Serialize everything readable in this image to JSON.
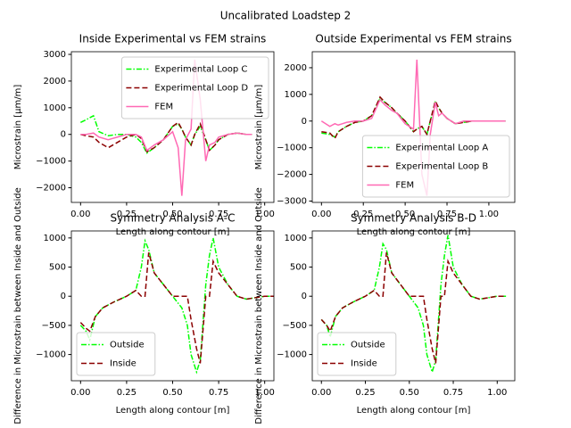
{
  "title": "Uncalibrated Loadstep 2",
  "chart_data": [
    {
      "type": "line",
      "title": "Inside Experimental vs FEM strains",
      "xlabel": "Length along contour [m]",
      "ylabel": "Microstrain [µm/m]",
      "x": [
        0,
        0.03,
        0.07,
        0.1,
        0.15,
        0.2,
        0.25,
        0.3,
        0.33,
        0.36,
        0.4,
        0.45,
        0.5,
        0.53,
        0.55,
        0.57,
        0.6,
        0.62,
        0.65,
        0.68,
        0.7,
        0.73,
        0.75,
        0.8,
        0.85,
        0.9,
        0.93
      ],
      "series": [
        {
          "name": "Experimental Loop C",
          "color": "#00ff00",
          "linestyle": "dashdot",
          "values": [
            450,
            550,
            700,
            100,
            -50,
            0,
            0,
            -100,
            -300,
            -700,
            -500,
            -200,
            300,
            400,
            200,
            -100,
            -400,
            0,
            300,
            -200,
            -600,
            -400,
            -200,
            0,
            50,
            0,
            0
          ]
        },
        {
          "name": "Experimental Loop D",
          "color": "#8b0000",
          "linestyle": "dashed",
          "values": [
            0,
            -50,
            -100,
            -300,
            -500,
            -300,
            -100,
            0,
            -150,
            -650,
            -500,
            -200,
            300,
            450,
            200,
            -100,
            -400,
            0,
            400,
            -200,
            -600,
            -400,
            -200,
            0,
            50,
            0,
            0
          ]
        },
        {
          "name": "FEM",
          "color": "#ff69b4",
          "linestyle": "solid",
          "values": [
            0,
            0,
            50,
            -100,
            -200,
            -100,
            0,
            0,
            -100,
            -600,
            -400,
            -200,
            100,
            -500,
            -2300,
            -200,
            200,
            2800,
            1300,
            -1000,
            -400,
            -300,
            -100,
            0,
            50,
            0,
            0
          ]
        }
      ],
      "xlim": [
        -0.05,
        1.05
      ],
      "xticks": [
        {
          "value": 0,
          "label": "0.00"
        },
        {
          "value": 0.25,
          "label": "0.25"
        },
        {
          "value": 0.5,
          "label": "0.50"
        },
        {
          "value": 0.75,
          "label": "0.75"
        },
        {
          "value": 1,
          "label": "1.00"
        }
      ],
      "ylim": [
        -2550,
        3100
      ],
      "yticks": [
        {
          "value": -2000,
          "label": "−2000"
        },
        {
          "value": -1000,
          "label": "−1000"
        },
        0,
        1000,
        2000,
        3000
      ],
      "legend": "upper right"
    },
    {
      "type": "line",
      "title": "Outside Experimental vs FEM strains",
      "xlabel": "Length along contour [m]",
      "ylabel": "Microstrain [µm/m]",
      "x": [
        0,
        0.05,
        0.08,
        0.1,
        0.15,
        0.2,
        0.25,
        0.3,
        0.35,
        0.38,
        0.42,
        0.45,
        0.5,
        0.55,
        0.57,
        0.6,
        0.63,
        0.65,
        0.68,
        0.7,
        0.72,
        0.75,
        0.8,
        0.85,
        0.9,
        1.0,
        1.1
      ],
      "series": [
        {
          "name": "Experimental Loop A",
          "color": "#00ff00",
          "linestyle": "dashdot",
          "values": [
            -450,
            -500,
            -600,
            -400,
            -200,
            -50,
            0,
            200,
            850,
            700,
            500,
            300,
            0,
            -400,
            -300,
            -200,
            -500,
            0,
            700,
            500,
            300,
            100,
            -100,
            -50,
            0,
            0,
            0
          ]
        },
        {
          "name": "Experimental Loop B",
          "color": "#8b0000",
          "linestyle": "dashed",
          "values": [
            -400,
            -450,
            -650,
            -400,
            -200,
            -50,
            0,
            200,
            900,
            700,
            500,
            300,
            0,
            -400,
            -300,
            -200,
            -500,
            0,
            750,
            500,
            300,
            100,
            -100,
            -50,
            0,
            0,
            0
          ]
        },
        {
          "name": "FEM",
          "color": "#ff69b4",
          "linestyle": "solid",
          "values": [
            0,
            -200,
            -100,
            -150,
            -50,
            0,
            0,
            100,
            800,
            600,
            400,
            300,
            -100,
            -300,
            2300,
            -2000,
            -2800,
            -500,
            700,
            200,
            300,
            100,
            -100,
            0,
            0,
            0,
            0
          ]
        }
      ],
      "xlim": [
        -0.055,
        1.155
      ],
      "xticks": [
        {
          "value": 0,
          "label": "0.00"
        },
        {
          "value": 0.25,
          "label": "0.25"
        },
        {
          "value": 0.5,
          "label": "0.50"
        },
        {
          "value": 0.75,
          "label": "0.75"
        },
        {
          "value": 1,
          "label": "1.00"
        }
      ],
      "ylim": [
        -3050,
        2600
      ],
      "yticks": [
        {
          "value": -3000,
          "label": "−3000"
        },
        {
          "value": -2000,
          "label": "−2000"
        },
        {
          "value": -1000,
          "label": "−1000"
        },
        0,
        1000,
        2000
      ],
      "legend": "lower right"
    },
    {
      "type": "line",
      "title": "Symmetry Analysis A-C",
      "xlabel": "Length along contour [m]",
      "ylabel": "Difference in Microstrain between Inside and Outside",
      "x": [
        0,
        0.03,
        0.05,
        0.08,
        0.12,
        0.18,
        0.25,
        0.3,
        0.33,
        0.35,
        0.37,
        0.4,
        0.45,
        0.5,
        0.55,
        0.58,
        0.6,
        0.63,
        0.65,
        0.68,
        0.7,
        0.72,
        0.75,
        0.8,
        0.85,
        0.9,
        1.0,
        1.05
      ],
      "series": [
        {
          "name": "Outside",
          "color": "#00ff00",
          "linestyle": "dashdot",
          "values": [
            -500,
            -600,
            -750,
            -350,
            -200,
            -100,
            0,
            100,
            500,
            950,
            800,
            400,
            200,
            0,
            -200,
            -500,
            -1000,
            -1300,
            -1100,
            200,
            700,
            1000,
            500,
            200,
            0,
            -50,
            0,
            0
          ]
        },
        {
          "name": "Inside",
          "color": "#8b0000",
          "linestyle": "dashed",
          "values": [
            -450,
            -550,
            -600,
            -350,
            -200,
            -100,
            0,
            100,
            0,
            0,
            750,
            400,
            200,
            0,
            0,
            0,
            -400,
            -900,
            -1150,
            0,
            0,
            600,
            400,
            200,
            0,
            -50,
            0,
            0
          ]
        }
      ],
      "xlim": [
        -0.05,
        1.05
      ],
      "xticks": [
        {
          "value": 0,
          "label": "0.00"
        },
        {
          "value": 0.25,
          "label": "0.25"
        },
        {
          "value": 0.5,
          "label": "0.50"
        },
        {
          "value": 0.75,
          "label": "0.75"
        },
        {
          "value": 1,
          "label": "1.00"
        }
      ],
      "ylim": [
        -1450,
        1120
      ],
      "yticks": [
        {
          "value": -1000,
          "label": "−1000"
        },
        {
          "value": -500,
          "label": "−500"
        },
        0,
        500,
        1000
      ],
      "legend": "lower left"
    },
    {
      "type": "line",
      "title": "Symmetry Analysis B-D",
      "xlabel": "Length along contour [m]",
      "ylabel": "Difference in Microstrain between Inside and Outside",
      "x": [
        0,
        0.03,
        0.05,
        0.08,
        0.12,
        0.18,
        0.25,
        0.3,
        0.33,
        0.35,
        0.37,
        0.4,
        0.45,
        0.5,
        0.55,
        0.58,
        0.6,
        0.63,
        0.65,
        0.68,
        0.7,
        0.72,
        0.75,
        0.8,
        0.85,
        0.9,
        1.0,
        1.05
      ],
      "series": [
        {
          "name": "Outside",
          "color": "#00ff00",
          "linestyle": "dashdot",
          "values": [
            -400,
            -500,
            -700,
            -350,
            -200,
            -100,
            0,
            100,
            500,
            900,
            800,
            400,
            200,
            0,
            -200,
            -500,
            -1000,
            -1300,
            -1100,
            200,
            700,
            1050,
            500,
            200,
            0,
            -50,
            0,
            0
          ]
        },
        {
          "name": "Inside",
          "color": "#8b0000",
          "linestyle": "dashed",
          "values": [
            -400,
            -500,
            -600,
            -350,
            -200,
            -100,
            0,
            100,
            0,
            0,
            750,
            400,
            200,
            0,
            0,
            0,
            -400,
            -900,
            -1150,
            0,
            0,
            600,
            400,
            200,
            0,
            -50,
            0,
            0
          ]
        }
      ],
      "xlim": [
        -0.052,
        1.1
      ],
      "xticks": [
        {
          "value": 0,
          "label": "0.00"
        },
        {
          "value": 0.25,
          "label": "0.25"
        },
        {
          "value": 0.5,
          "label": "0.50"
        },
        {
          "value": 0.75,
          "label": "0.75"
        },
        {
          "value": 1,
          "label": "1.00"
        }
      ],
      "ylim": [
        -1450,
        1120
      ],
      "yticks": [
        {
          "value": -1000,
          "label": "−1000"
        },
        {
          "value": -500,
          "label": "−500"
        },
        0,
        500,
        1000
      ],
      "legend": "lower left"
    }
  ]
}
